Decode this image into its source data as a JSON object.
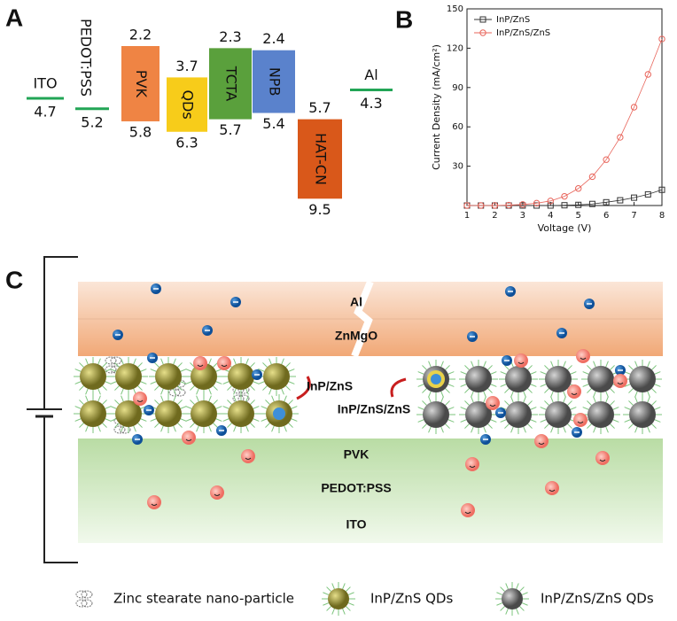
{
  "panel_labels": [
    "A",
    "B",
    "C"
  ],
  "panel_a": {
    "items": [
      {
        "name": "ITO",
        "level": 4.7,
        "color": "#22a556"
      },
      {
        "name": "PEDOT:PSS",
        "level": 5.2,
        "color": "#22a556"
      },
      {
        "name": "PVK",
        "lumo": 2.2,
        "homo": 5.8,
        "color": "#ef8444"
      },
      {
        "name": "QDs",
        "lumo": 3.7,
        "homo": 6.3,
        "color": "#f7cc1a"
      },
      {
        "name": "TCTA",
        "lumo": 2.3,
        "homo": 5.7,
        "color": "#5aa03c"
      },
      {
        "name": "NPB",
        "lumo": 2.4,
        "homo": 5.4,
        "color": "#5a82cc"
      },
      {
        "name": "HAT-CN",
        "lumo": 5.7,
        "homo": 9.5,
        "color": "#d9581a"
      },
      {
        "name": "Al",
        "level": 4.3,
        "color": "#22a556"
      }
    ]
  },
  "chart_data": {
    "type": "scatter",
    "x_label": "Voltage (V)",
    "y_label": "Current Density (mA/cm²)",
    "x": [
      1,
      1.5,
      2,
      2.5,
      3,
      3.5,
      4,
      4.5,
      5,
      5.5,
      6,
      6.5,
      7,
      7.5,
      8
    ],
    "series": [
      {
        "name": "InP/ZnS",
        "color": "#333333",
        "marker": "square",
        "values": [
          0,
          0,
          0,
          0,
          0,
          0,
          0,
          0.2,
          0.5,
          1.2,
          2.5,
          4,
          6,
          8.5,
          12
        ]
      },
      {
        "name": "InP/ZnS/ZnS",
        "color": "#e8645a",
        "marker": "circle",
        "values": [
          0,
          0,
          0,
          0.3,
          0.8,
          1.8,
          3.5,
          7,
          13,
          22,
          35,
          52,
          75,
          100,
          127
        ]
      }
    ],
    "xlim": [
      1,
      8
    ],
    "xticks": [
      1,
      2,
      3,
      4,
      5,
      6,
      7,
      8
    ],
    "ylim": [
      0,
      150
    ],
    "yticks": [
      30,
      60,
      90,
      120,
      150
    ],
    "legend": "upper left"
  },
  "panel_c": {
    "layers": [
      "Al",
      "ZnMgO",
      "PVK",
      "PEDOT:PSS",
      "ITO"
    ],
    "qd_labels": [
      "InP/ZnS",
      "InP/ZnS/ZnS"
    ],
    "legend": [
      "Zinc stearate nano-particle",
      "InP/ZnS QDs",
      "InP/ZnS/ZnS QDs"
    ]
  }
}
